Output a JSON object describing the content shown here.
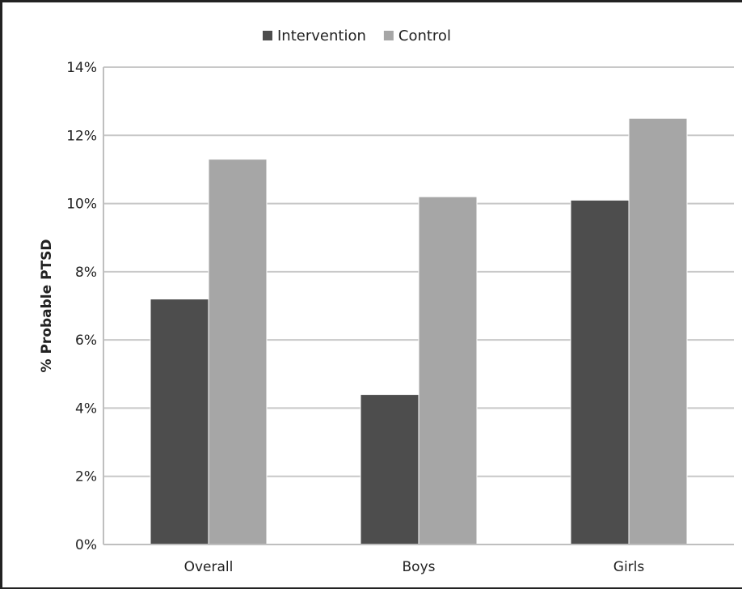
{
  "chart_data": {
    "type": "bar",
    "categories": [
      "Overall",
      "Boys",
      "Girls"
    ],
    "series": [
      {
        "name": "Intervention",
        "values": [
          7.2,
          4.4,
          10.1
        ],
        "color": "#4d4d4d"
      },
      {
        "name": "Control",
        "values": [
          11.3,
          10.2,
          12.5
        ],
        "color": "#a6a6a6"
      }
    ],
    "ylabel": "% Probable PTSD",
    "xlabel": "",
    "ylim": [
      0,
      14
    ],
    "yticks": [
      0,
      2,
      4,
      6,
      8,
      10,
      12,
      14
    ],
    "ytick_labels": [
      "0%",
      "2%",
      "4%",
      "6%",
      "8%",
      "10%",
      "12%",
      "14%"
    ],
    "grid": true,
    "legend_position": "top-center",
    "colors": {
      "gridline": "#c8c8c8",
      "axis": "#bfbfbf"
    }
  }
}
